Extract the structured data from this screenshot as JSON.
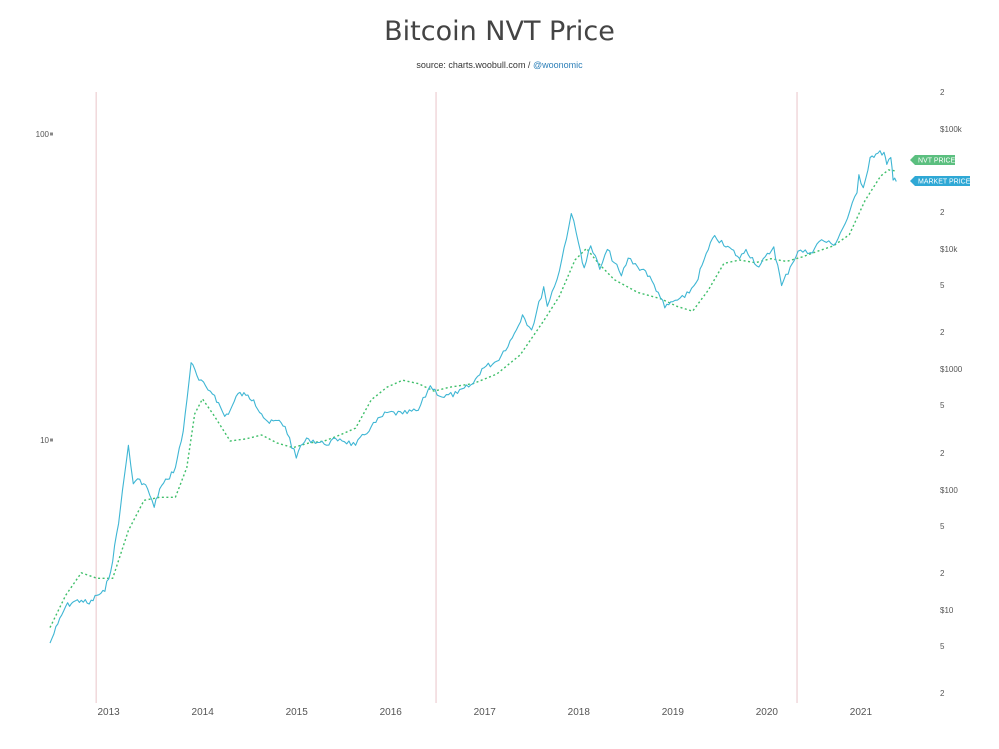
{
  "header": {
    "title": "Bitcoin NVT Price",
    "source_prefix": "source: charts.woobull.com / ",
    "source_handle": "@woonomic"
  },
  "colors": {
    "market_price": "#3fb6d4",
    "nvt_price": "#3fbf6a",
    "nvt_tag": "#5bbf7f",
    "market_tag": "#2fa8d5",
    "halving_line": "#e9c4c9"
  },
  "chart_data": {
    "type": "line",
    "title": "Bitcoin NVT Price",
    "x_range": [
      "2012-06",
      "2021-08"
    ],
    "x_ticks": [
      "2013",
      "2014",
      "2015",
      "2016",
      "2017",
      "2018",
      "2019",
      "2020",
      "2021"
    ],
    "y_right_scale": "log",
    "y_right_range": [
      2,
      200000
    ],
    "y_right_ticks": [
      "2",
      "$100k",
      "2",
      "$10k",
      "5",
      "2",
      "$1000",
      "5",
      "2",
      "$100",
      "5",
      "2",
      "$10",
      "5",
      "2"
    ],
    "y_left_ticks": [
      "100",
      "10"
    ],
    "vertical_markers": [
      "2012-11-28",
      "2016-07-09",
      "2020-05-11"
    ],
    "grid": false,
    "series": [
      {
        "name": "MARKET PRICE",
        "style": "solid",
        "points": [
          [
            "2012-06-01",
            5.2
          ],
          [
            "2012-07-01",
            7.5
          ],
          [
            "2012-08-01",
            10.5
          ],
          [
            "2012-09-01",
            11.5
          ],
          [
            "2012-10-01",
            11.8
          ],
          [
            "2012-11-01",
            11.0
          ],
          [
            "2012-12-01",
            13.0
          ],
          [
            "2013-01-01",
            14.0
          ],
          [
            "2013-02-01",
            25.0
          ],
          [
            "2013-03-01",
            70.0
          ],
          [
            "2013-04-01",
            230.0
          ],
          [
            "2013-04-20",
            110.0
          ],
          [
            "2013-05-15",
            120.0
          ],
          [
            "2013-06-15",
            100.0
          ],
          [
            "2013-07-10",
            70.0
          ],
          [
            "2013-08-01",
            100.0
          ],
          [
            "2013-09-01",
            120.0
          ],
          [
            "2013-10-01",
            150.0
          ],
          [
            "2013-11-01",
            300.0
          ],
          [
            "2013-12-01",
            1120.0
          ],
          [
            "2014-01-01",
            800.0
          ],
          [
            "2014-02-15",
            650.0
          ],
          [
            "2014-03-01",
            600.0
          ],
          [
            "2014-04-10",
            400.0
          ],
          [
            "2014-05-01",
            450.0
          ],
          [
            "2014-06-01",
            620.0
          ],
          [
            "2014-07-01",
            600.0
          ],
          [
            "2014-08-01",
            550.0
          ],
          [
            "2014-09-01",
            420.0
          ],
          [
            "2014-10-01",
            350.0
          ],
          [
            "2014-11-01",
            370.0
          ],
          [
            "2014-12-01",
            330.0
          ],
          [
            "2015-01-14",
            180.0
          ],
          [
            "2015-02-01",
            230.0
          ],
          [
            "2015-03-01",
            260.0
          ],
          [
            "2015-05-01",
            235.0
          ],
          [
            "2015-07-01",
            260.0
          ],
          [
            "2015-09-01",
            230.0
          ],
          [
            "2015-11-01",
            330.0
          ],
          [
            "2016-01-01",
            430.0
          ],
          [
            "2016-03-01",
            420.0
          ],
          [
            "2016-05-01",
            450.0
          ],
          [
            "2016-06-17",
            720.0
          ],
          [
            "2016-08-01",
            580.0
          ],
          [
            "2016-10-01",
            620.0
          ],
          [
            "2016-12-01",
            750.0
          ],
          [
            "2017-01-05",
            1000.0
          ],
          [
            "2017-03-01",
            1150.0
          ],
          [
            "2017-05-01",
            1800.0
          ],
          [
            "2017-06-10",
            2800.0
          ],
          [
            "2017-07-15",
            2100.0
          ],
          [
            "2017-09-01",
            4800.0
          ],
          [
            "2017-09-15",
            3300.0
          ],
          [
            "2017-11-01",
            6500.0
          ],
          [
            "2017-12-17",
            19500.0
          ],
          [
            "2018-01-15",
            11000.0
          ],
          [
            "2018-02-06",
            6900.0
          ],
          [
            "2018-03-01",
            10500.0
          ],
          [
            "2018-04-06",
            6700.0
          ],
          [
            "2018-05-05",
            9800.0
          ],
          [
            "2018-06-29",
            5900.0
          ],
          [
            "2018-07-25",
            8300.0
          ],
          [
            "2018-09-01",
            7000.0
          ],
          [
            "2018-10-01",
            6500.0
          ],
          [
            "2018-11-20",
            4300.0
          ],
          [
            "2018-12-15",
            3200.0
          ],
          [
            "2019-01-15",
            3600.0
          ],
          [
            "2019-03-01",
            3900.0
          ],
          [
            "2019-04-15",
            5200.0
          ],
          [
            "2019-05-15",
            8000.0
          ],
          [
            "2019-06-26",
            12800.0
          ],
          [
            "2019-08-01",
            10500.0
          ],
          [
            "2019-09-01",
            9800.0
          ],
          [
            "2019-10-01",
            8200.0
          ],
          [
            "2019-10-26",
            9800.0
          ],
          [
            "2019-12-15",
            7000.0
          ],
          [
            "2020-02-12",
            10300.0
          ],
          [
            "2020-03-12",
            4900.0
          ],
          [
            "2020-04-15",
            7000.0
          ],
          [
            "2020-05-15",
            9500.0
          ],
          [
            "2020-07-01",
            9200.0
          ],
          [
            "2020-08-15",
            11800.0
          ],
          [
            "2020-10-01",
            10600.0
          ],
          [
            "2020-11-15",
            16000.0
          ],
          [
            "2020-12-31",
            29000.0
          ],
          [
            "2021-01-08",
            41000.0
          ],
          [
            "2021-01-25",
            32000.0
          ],
          [
            "2021-02-21",
            57000.0
          ],
          [
            "2021-03-13",
            61000.0
          ],
          [
            "2021-04-14",
            63000.0
          ],
          [
            "2021-04-25",
            50000.0
          ],
          [
            "2021-05-10",
            57000.0
          ],
          [
            "2021-05-19",
            37000.0
          ],
          [
            "2021-06-01",
            36000.0
          ]
        ]
      },
      {
        "name": "NVT PRICE",
        "style": "dotted",
        "points": [
          [
            "2012-06-01",
            7.0
          ],
          [
            "2012-08-01",
            13.0
          ],
          [
            "2012-10-01",
            20.0
          ],
          [
            "2012-12-01",
            18.0
          ],
          [
            "2013-02-01",
            18.0
          ],
          [
            "2013-04-01",
            45.0
          ],
          [
            "2013-06-01",
            80.0
          ],
          [
            "2013-08-01",
            85.0
          ],
          [
            "2013-10-01",
            85.0
          ],
          [
            "2013-11-15",
            150.0
          ],
          [
            "2013-12-15",
            420.0
          ],
          [
            "2014-01-15",
            560.0
          ],
          [
            "2014-03-01",
            400.0
          ],
          [
            "2014-05-01",
            250.0
          ],
          [
            "2014-07-01",
            260.0
          ],
          [
            "2014-09-01",
            280.0
          ],
          [
            "2014-11-01",
            240.0
          ],
          [
            "2015-01-01",
            220.0
          ],
          [
            "2015-03-01",
            240.0
          ],
          [
            "2015-05-01",
            250.0
          ],
          [
            "2015-07-01",
            280.0
          ],
          [
            "2015-09-01",
            320.0
          ],
          [
            "2015-11-01",
            550.0
          ],
          [
            "2016-01-01",
            700.0
          ],
          [
            "2016-03-01",
            800.0
          ],
          [
            "2016-05-01",
            750.0
          ],
          [
            "2016-07-01",
            650.0
          ],
          [
            "2016-09-01",
            700.0
          ],
          [
            "2016-12-01",
            750.0
          ],
          [
            "2017-03-01",
            900.0
          ],
          [
            "2017-06-01",
            1300.0
          ],
          [
            "2017-09-01",
            2500.0
          ],
          [
            "2017-11-01",
            4000.0
          ],
          [
            "2018-01-01",
            8000.0
          ],
          [
            "2018-02-15",
            10000.0
          ],
          [
            "2018-04-01",
            7500.0
          ],
          [
            "2018-06-01",
            5500.0
          ],
          [
            "2018-09-01",
            4300.0
          ],
          [
            "2018-12-01",
            3800.0
          ],
          [
            "2019-02-01",
            3300.0
          ],
          [
            "2019-04-01",
            3000.0
          ],
          [
            "2019-06-01",
            4500.0
          ],
          [
            "2019-08-01",
            7500.0
          ],
          [
            "2019-10-01",
            8000.0
          ],
          [
            "2019-12-01",
            7600.0
          ],
          [
            "2020-02-01",
            8200.0
          ],
          [
            "2020-04-01",
            7800.0
          ],
          [
            "2020-06-01",
            8500.0
          ],
          [
            "2020-08-01",
            9500.0
          ],
          [
            "2020-10-01",
            10500.0
          ],
          [
            "2020-12-01",
            13000.0
          ],
          [
            "2021-02-01",
            25000.0
          ],
          [
            "2021-04-01",
            40000.0
          ],
          [
            "2021-05-01",
            45000.0
          ],
          [
            "2021-06-01",
            44000.0
          ]
        ]
      }
    ]
  }
}
